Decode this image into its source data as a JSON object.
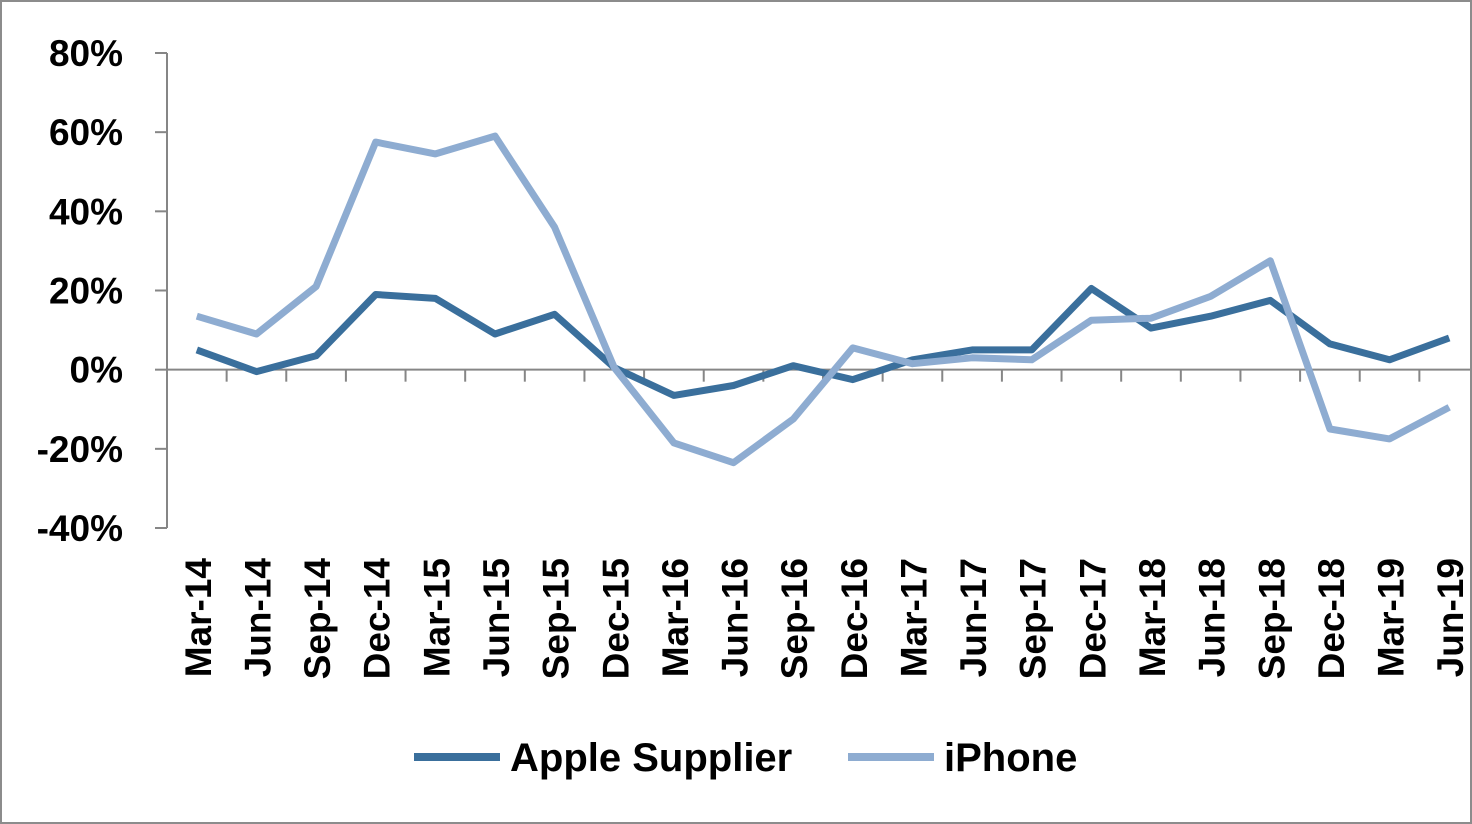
{
  "chart_data": {
    "type": "line",
    "title": "",
    "xlabel": "",
    "ylabel": "",
    "categories": [
      "Mar-14",
      "Jun-14",
      "Sep-14",
      "Dec-14",
      "Mar-15",
      "Jun-15",
      "Sep-15",
      "Dec-15",
      "Mar-16",
      "Jun-16",
      "Sep-16",
      "Dec-16",
      "Mar-17",
      "Jun-17",
      "Sep-17",
      "Dec-17",
      "Mar-18",
      "Jun-18",
      "Sep-18",
      "Dec-18",
      "Mar-19",
      "Jun-19"
    ],
    "ylim": [
      -0.4,
      0.8
    ],
    "yticks": [
      {
        "value": 0.8,
        "label": "80%"
      },
      {
        "value": 0.6,
        "label": "60%"
      },
      {
        "value": 0.4,
        "label": "40%"
      },
      {
        "value": 0.2,
        "label": "20%"
      },
      {
        "value": 0.0,
        "label": "0%"
      },
      {
        "value": -0.2,
        "label": "-20%"
      },
      {
        "value": -0.4,
        "label": "-40%"
      }
    ],
    "legend_position": "bottom",
    "grid": false,
    "series": [
      {
        "name": "Apple Supplier",
        "color": "#3a6f9c",
        "values": [
          0.05,
          -0.005,
          0.035,
          0.19,
          0.18,
          0.09,
          0.14,
          0.005,
          -0.065,
          -0.04,
          0.01,
          -0.025,
          0.025,
          0.05,
          0.05,
          0.205,
          0.105,
          0.135,
          0.175,
          0.065,
          0.025,
          0.08
        ]
      },
      {
        "name": "iPhone",
        "color": "#8eacd1",
        "values": [
          0.135,
          0.09,
          0.21,
          0.575,
          0.545,
          0.59,
          0.36,
          0.005,
          -0.185,
          -0.235,
          -0.125,
          0.055,
          0.015,
          0.03,
          0.025,
          0.125,
          0.13,
          0.185,
          0.275,
          -0.15,
          -0.175,
          -0.095
        ]
      }
    ]
  }
}
